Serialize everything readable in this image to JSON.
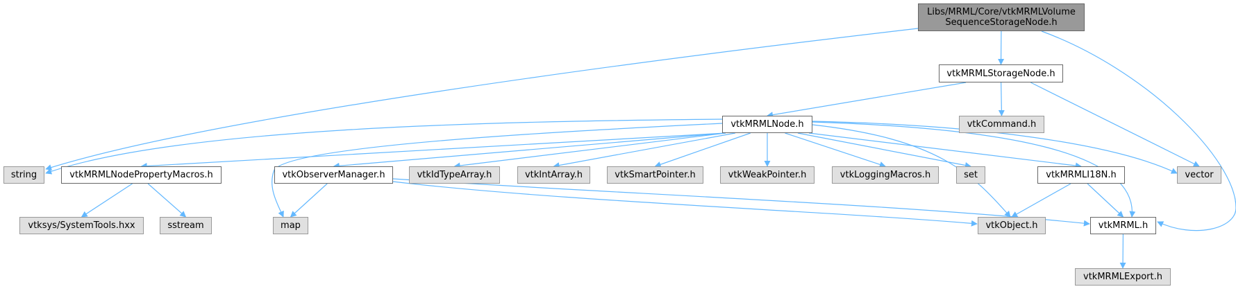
{
  "colors": {
    "edge": "#63b8ff",
    "root_fill": "#999999",
    "documented_fill": "#ffffff",
    "external_fill": "#e0e0e0"
  },
  "nodes": {
    "root": {
      "label": "Libs/MRML/Core/vtkMRMLVolume\nSequenceStorageNode.h",
      "kind": "root"
    },
    "storage": {
      "label": "vtkMRMLStorageNode.h",
      "kind": "documented"
    },
    "command": {
      "label": "vtkCommand.h",
      "kind": "external"
    },
    "mrmlnode": {
      "label": "vtkMRMLNode.h",
      "kind": "documented"
    },
    "string": {
      "label": "string",
      "kind": "external"
    },
    "propmacros": {
      "label": "vtkMRMLNodePropertyMacros.h",
      "kind": "documented"
    },
    "observer": {
      "label": "vtkObserverManager.h",
      "kind": "documented"
    },
    "idtype": {
      "label": "vtkIdTypeArray.h",
      "kind": "external"
    },
    "intarray": {
      "label": "vtkIntArray.h",
      "kind": "external"
    },
    "smartptr": {
      "label": "vtkSmartPointer.h",
      "kind": "external"
    },
    "weakptr": {
      "label": "vtkWeakPointer.h",
      "kind": "external"
    },
    "logging": {
      "label": "vtkLoggingMacros.h",
      "kind": "external"
    },
    "set": {
      "label": "set",
      "kind": "external"
    },
    "i18n": {
      "label": "vtkMRMLI18N.h",
      "kind": "documented"
    },
    "vector": {
      "label": "vector",
      "kind": "external"
    },
    "systools": {
      "label": "vtksys/SystemTools.hxx",
      "kind": "external"
    },
    "sstream": {
      "label": "sstream",
      "kind": "external"
    },
    "map": {
      "label": "map",
      "kind": "external"
    },
    "vtkobject": {
      "label": "vtkObject.h",
      "kind": "external"
    },
    "vtkmrml": {
      "label": "vtkMRML.h",
      "kind": "documented"
    },
    "export": {
      "label": "vtkMRMLExport.h",
      "kind": "external"
    }
  },
  "edges": [
    [
      "root",
      "string"
    ],
    [
      "root",
      "storage"
    ],
    [
      "root",
      "vtkmrml"
    ],
    [
      "storage",
      "mrmlnode"
    ],
    [
      "storage",
      "command"
    ],
    [
      "storage",
      "vector"
    ],
    [
      "mrmlnode",
      "string"
    ],
    [
      "mrmlnode",
      "map"
    ],
    [
      "mrmlnode",
      "propmacros"
    ],
    [
      "mrmlnode",
      "observer"
    ],
    [
      "mrmlnode",
      "idtype"
    ],
    [
      "mrmlnode",
      "intarray"
    ],
    [
      "mrmlnode",
      "smartptr"
    ],
    [
      "mrmlnode",
      "weakptr"
    ],
    [
      "mrmlnode",
      "logging"
    ],
    [
      "mrmlnode",
      "set"
    ],
    [
      "mrmlnode",
      "i18n"
    ],
    [
      "mrmlnode",
      "vtkobject"
    ],
    [
      "mrmlnode",
      "vtkmrml"
    ],
    [
      "mrmlnode",
      "vector"
    ],
    [
      "propmacros",
      "systools"
    ],
    [
      "propmacros",
      "sstream"
    ],
    [
      "observer",
      "map"
    ],
    [
      "observer",
      "vtkobject"
    ],
    [
      "observer",
      "vtkmrml"
    ],
    [
      "i18n",
      "vtkobject"
    ],
    [
      "i18n",
      "vtkmrml"
    ],
    [
      "vtkmrml",
      "export"
    ]
  ]
}
